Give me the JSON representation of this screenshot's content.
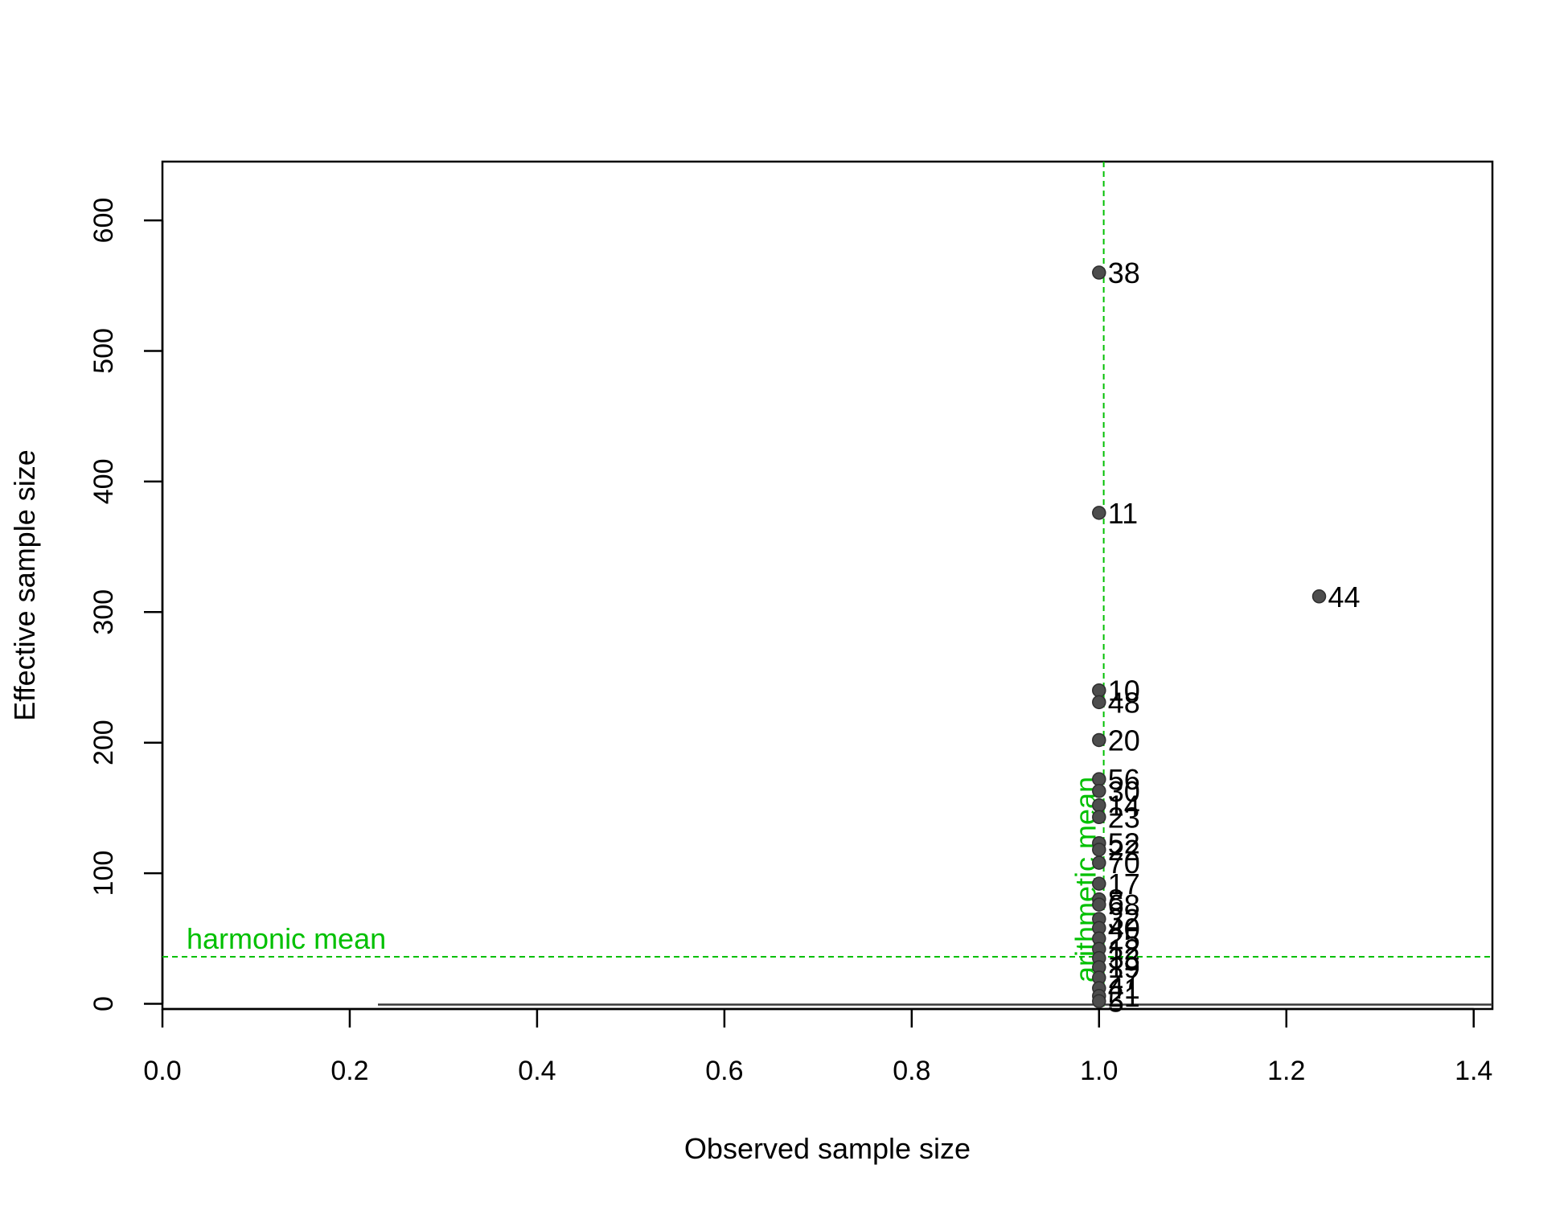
{
  "chart_data": {
    "type": "scatter",
    "title": "",
    "xlabel": "Observed sample size",
    "ylabel": "Effective sample size",
    "xlim": [
      0,
      1.42
    ],
    "ylim": [
      -4,
      645
    ],
    "xticks": [
      "0.0",
      "0.2",
      "0.4",
      "0.6",
      "0.8",
      "1.0",
      "1.2",
      "1.4"
    ],
    "xtick_values": [
      0,
      0.2,
      0.4,
      0.6,
      0.8,
      1.0,
      1.2,
      1.4
    ],
    "yticks": [
      "0",
      "100",
      "200",
      "300",
      "400",
      "500",
      "600"
    ],
    "ytick_values": [
      0,
      100,
      200,
      300,
      400,
      500,
      600
    ],
    "grid": false,
    "point_color": "#4d4d4d",
    "reference_color": "#00c000",
    "reference_lines": [
      {
        "orientation": "horizontal",
        "value": 36,
        "label": "harmonic mean"
      },
      {
        "orientation": "vertical",
        "value": 1.005,
        "label": "arithmetic mean"
      }
    ],
    "points": [
      {
        "x": 1.0,
        "y": 560,
        "label": "38"
      },
      {
        "x": 1.0,
        "y": 376,
        "label": "11"
      },
      {
        "x": 1.235,
        "y": 312,
        "label": "44"
      },
      {
        "x": 1.0,
        "y": 240,
        "label": "10"
      },
      {
        "x": 1.0,
        "y": 231,
        "label": "48"
      },
      {
        "x": 1.0,
        "y": 202,
        "label": "20"
      },
      {
        "x": 1.0,
        "y": 172,
        "label": "56"
      },
      {
        "x": 1.0,
        "y": 163,
        "label": "30"
      },
      {
        "x": 1.0,
        "y": 152,
        "label": "14"
      },
      {
        "x": 1.0,
        "y": 143,
        "label": "23"
      },
      {
        "x": 1.0,
        "y": 123,
        "label": "52"
      },
      {
        "x": 1.0,
        "y": 118,
        "label": "22"
      },
      {
        "x": 1.0,
        "y": 108,
        "label": "70"
      },
      {
        "x": 1.0,
        "y": 92,
        "label": "17"
      },
      {
        "x": 1.0,
        "y": 80,
        "label": "8"
      },
      {
        "x": 1.0,
        "y": 76,
        "label": "68"
      },
      {
        "x": 1.0,
        "y": 65,
        "label": "32"
      },
      {
        "x": 1.0,
        "y": 58,
        "label": "40"
      },
      {
        "x": 1.0,
        "y": 50,
        "label": "25"
      },
      {
        "x": 1.0,
        "y": 42,
        "label": "12"
      },
      {
        "x": 1.0,
        "y": 35,
        "label": "33"
      },
      {
        "x": 1.0,
        "y": 28,
        "label": "19"
      },
      {
        "x": 1.0,
        "y": 20,
        "label": "27"
      },
      {
        "x": 1.0,
        "y": 12,
        "label": "41"
      },
      {
        "x": 1.0,
        "y": 6,
        "label": "21"
      },
      {
        "x": 1.0,
        "y": 2,
        "label": "5"
      }
    ]
  }
}
